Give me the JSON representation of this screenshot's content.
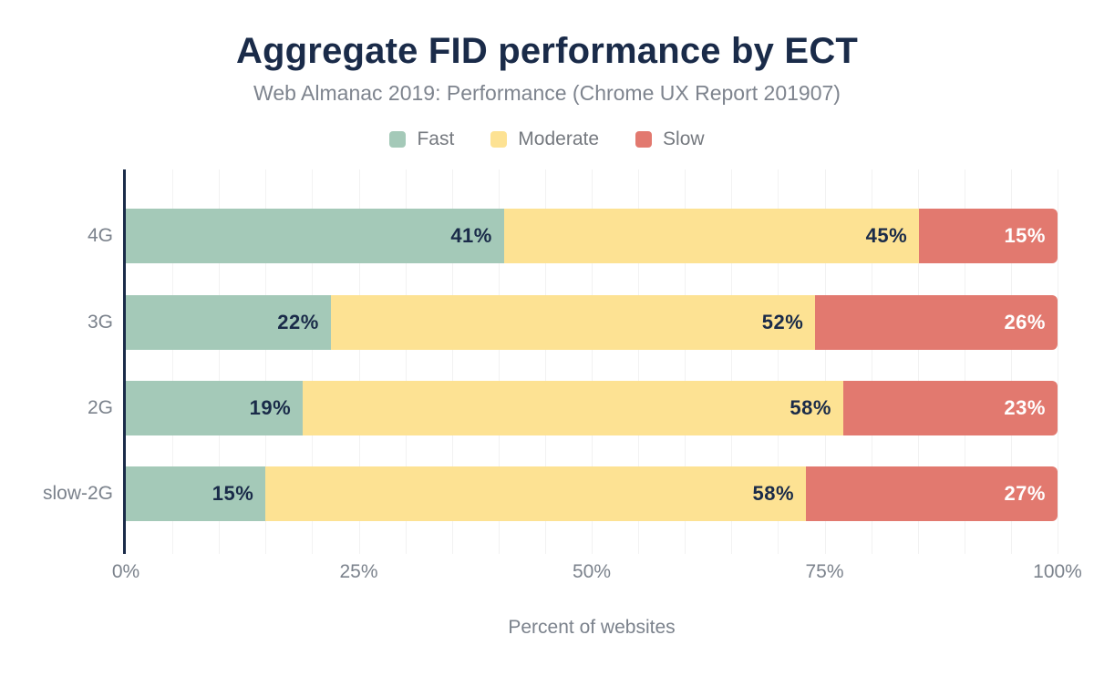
{
  "chart_data": {
    "type": "bar",
    "orientation": "horizontal",
    "stacked": true,
    "title": "Aggregate FID performance by ECT",
    "subtitle": "Web Almanac 2019: Performance (Chrome UX Report 201907)",
    "xlabel": "Percent of websites",
    "ylabel": "",
    "categories": [
      "4G",
      "3G",
      "2G",
      "slow-2G"
    ],
    "series": [
      {
        "name": "Fast",
        "color": "#a4c9b8",
        "label_color": "#1a2b49",
        "values": [
          41,
          22,
          19,
          15
        ]
      },
      {
        "name": "Moderate",
        "color": "#fde293",
        "label_color": "#1a2b49",
        "values": [
          45,
          52,
          58,
          58
        ]
      },
      {
        "name": "Slow",
        "color": "#e2796f",
        "label_color": "#ffffff",
        "values": [
          15,
          26,
          23,
          27
        ]
      }
    ],
    "value_suffix": "%",
    "xticks": [
      {
        "label": "0%",
        "percent": 0
      },
      {
        "label": "25%",
        "percent": 25
      },
      {
        "label": "50%",
        "percent": 50
      },
      {
        "label": "75%",
        "percent": 75
      },
      {
        "label": "100%",
        "percent": 100
      }
    ],
    "xlim": [
      0,
      100
    ],
    "grid": {
      "minor_step_percent": 5,
      "color": "#f2f2f2",
      "vertical": true
    },
    "legend_position": "top"
  },
  "style": {
    "title_color": "#1a2b49",
    "axis_line_color": "#1a2b49",
    "tick_text_color": "#7b828c",
    "subtitle_color": "#7e848e",
    "background": "#ffffff"
  }
}
